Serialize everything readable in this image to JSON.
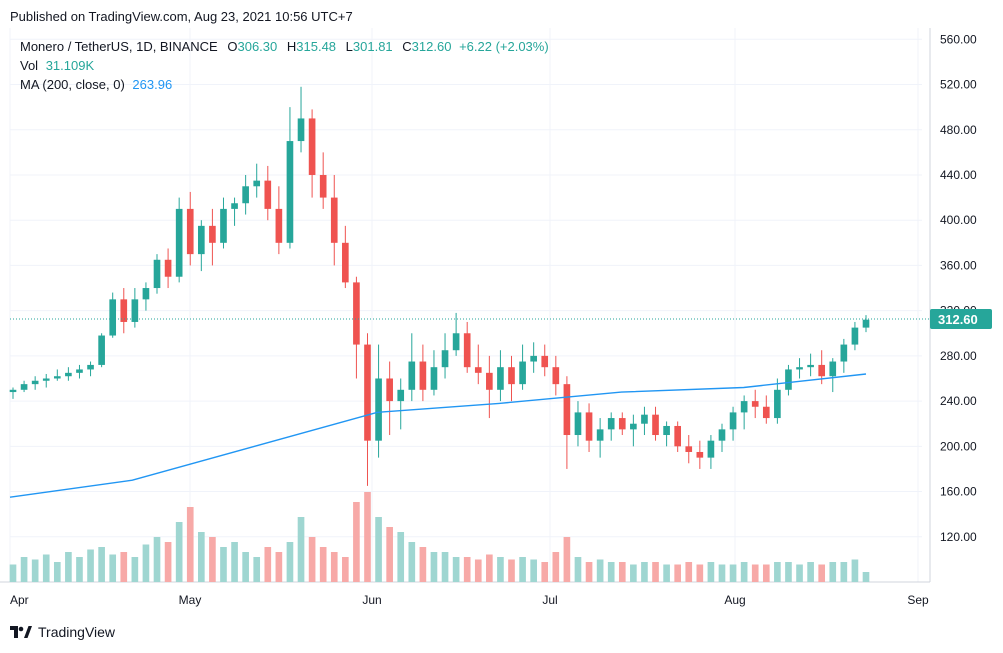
{
  "published": "Published on TradingView.com, Aug 23, 2021 10:56 UTC+7",
  "legend": {
    "symbol": "Monero / TetherUS, 1D, BINANCE",
    "o_label": "O",
    "o": "306.30",
    "h_label": "H",
    "h": "315.48",
    "l_label": "L",
    "l": "301.81",
    "c_label": "C",
    "c": "312.60",
    "change": "+6.22 (+2.03%)",
    "vol_label": "Vol",
    "vol": "31.109K",
    "ma_label": "MA (200, close, 0)",
    "ma": "263.96"
  },
  "footer": {
    "brand": "TradingView",
    "logo_icon": "tradingview-logo-icon"
  },
  "colors": {
    "up": "#26a69a",
    "down": "#ef5350",
    "up_vol": "#9fd6d1",
    "down_vol": "#f7a9a7",
    "ma": "#2196f3",
    "grid": "#f0f3fa"
  },
  "chart_data": {
    "type": "candlestick",
    "y_ticks": [
      "560.00",
      "520.00",
      "480.00",
      "440.00",
      "400.00",
      "360.00",
      "320.00",
      "280.00",
      "240.00",
      "200.00",
      "160.00",
      "120.00"
    ],
    "ylim": [
      80,
      570
    ],
    "x_labels": [
      "Apr",
      "May",
      "Jun",
      "Jul",
      "Aug",
      "Sep"
    ],
    "last_price": "312.60",
    "ma_series": [
      155,
      170,
      200,
      230,
      238,
      248,
      252,
      264
    ],
    "candles": [
      [
        248,
        252,
        242,
        250
      ],
      [
        250,
        258,
        248,
        255
      ],
      [
        255,
        262,
        250,
        258
      ],
      [
        258,
        264,
        252,
        260
      ],
      [
        260,
        268,
        258,
        262
      ],
      [
        262,
        270,
        258,
        265
      ],
      [
        265,
        272,
        260,
        268
      ],
      [
        268,
        275,
        262,
        272
      ],
      [
        272,
        300,
        270,
        298
      ],
      [
        298,
        336,
        296,
        330
      ],
      [
        330,
        340,
        300,
        310
      ],
      [
        310,
        340,
        305,
        330
      ],
      [
        330,
        345,
        320,
        340
      ],
      [
        340,
        370,
        335,
        365
      ],
      [
        365,
        375,
        340,
        350
      ],
      [
        350,
        420,
        345,
        410
      ],
      [
        410,
        425,
        360,
        370
      ],
      [
        370,
        400,
        355,
        395
      ],
      [
        395,
        410,
        360,
        380
      ],
      [
        380,
        420,
        375,
        410
      ],
      [
        410,
        420,
        395,
        415
      ],
      [
        415,
        440,
        405,
        430
      ],
      [
        430,
        450,
        420,
        435
      ],
      [
        435,
        448,
        400,
        410
      ],
      [
        410,
        430,
        370,
        380
      ],
      [
        380,
        500,
        375,
        470
      ],
      [
        470,
        518,
        460,
        490
      ],
      [
        490,
        498,
        420,
        440
      ],
      [
        440,
        460,
        410,
        420
      ],
      [
        420,
        440,
        360,
        380
      ],
      [
        380,
        395,
        340,
        345
      ],
      [
        345,
        350,
        260,
        290
      ],
      [
        290,
        300,
        165,
        205
      ],
      [
        205,
        290,
        190,
        260
      ],
      [
        260,
        275,
        210,
        240
      ],
      [
        240,
        260,
        215,
        250
      ],
      [
        250,
        300,
        240,
        275
      ],
      [
        275,
        290,
        240,
        250
      ],
      [
        250,
        285,
        245,
        270
      ],
      [
        270,
        300,
        260,
        285
      ],
      [
        285,
        318,
        280,
        300
      ],
      [
        300,
        310,
        265,
        270
      ],
      [
        270,
        290,
        255,
        265
      ],
      [
        265,
        280,
        225,
        250
      ],
      [
        250,
        285,
        240,
        270
      ],
      [
        270,
        280,
        240,
        255
      ],
      [
        255,
        290,
        250,
        275
      ],
      [
        275,
        292,
        265,
        280
      ],
      [
        280,
        290,
        262,
        270
      ],
      [
        270,
        280,
        245,
        255
      ],
      [
        255,
        262,
        180,
        210
      ],
      [
        210,
        240,
        200,
        230
      ],
      [
        230,
        238,
        195,
        205
      ],
      [
        205,
        225,
        190,
        215
      ],
      [
        215,
        230,
        205,
        225
      ],
      [
        225,
        230,
        210,
        215
      ],
      [
        215,
        228,
        200,
        220
      ],
      [
        220,
        235,
        210,
        228
      ],
      [
        228,
        235,
        205,
        210
      ],
      [
        210,
        222,
        200,
        218
      ],
      [
        218,
        222,
        195,
        200
      ],
      [
        200,
        210,
        185,
        195
      ],
      [
        195,
        205,
        180,
        190
      ],
      [
        190,
        210,
        180,
        205
      ],
      [
        205,
        220,
        195,
        215
      ],
      [
        215,
        235,
        205,
        230
      ],
      [
        230,
        245,
        215,
        240
      ],
      [
        240,
        250,
        225,
        235
      ],
      [
        235,
        245,
        220,
        225
      ],
      [
        225,
        260,
        220,
        250
      ],
      [
        250,
        272,
        245,
        268
      ],
      [
        268,
        278,
        260,
        270
      ],
      [
        270,
        282,
        262,
        272
      ],
      [
        272,
        285,
        255,
        262
      ],
      [
        262,
        278,
        248,
        275
      ],
      [
        275,
        295,
        265,
        290
      ],
      [
        290,
        310,
        285,
        305
      ],
      [
        305,
        316,
        301,
        312
      ]
    ],
    "volumes": [
      0.35,
      0.5,
      0.45,
      0.55,
      0.4,
      0.6,
      0.5,
      0.65,
      0.7,
      0.55,
      0.6,
      0.5,
      0.75,
      0.9,
      0.8,
      1.2,
      1.5,
      1.0,
      0.9,
      0.7,
      0.8,
      0.6,
      0.5,
      0.7,
      0.6,
      0.8,
      1.3,
      0.9,
      0.7,
      0.6,
      0.5,
      1.6,
      1.8,
      1.3,
      1.1,
      1.0,
      0.8,
      0.7,
      0.6,
      0.6,
      0.5,
      0.5,
      0.45,
      0.55,
      0.5,
      0.45,
      0.5,
      0.45,
      0.4,
      0.6,
      0.9,
      0.5,
      0.4,
      0.45,
      0.4,
      0.4,
      0.35,
      0.4,
      0.4,
      0.35,
      0.35,
      0.4,
      0.35,
      0.4,
      0.35,
      0.35,
      0.4,
      0.35,
      0.35,
      0.4,
      0.4,
      0.35,
      0.4,
      0.35,
      0.4,
      0.4,
      0.45,
      0.2
    ]
  }
}
